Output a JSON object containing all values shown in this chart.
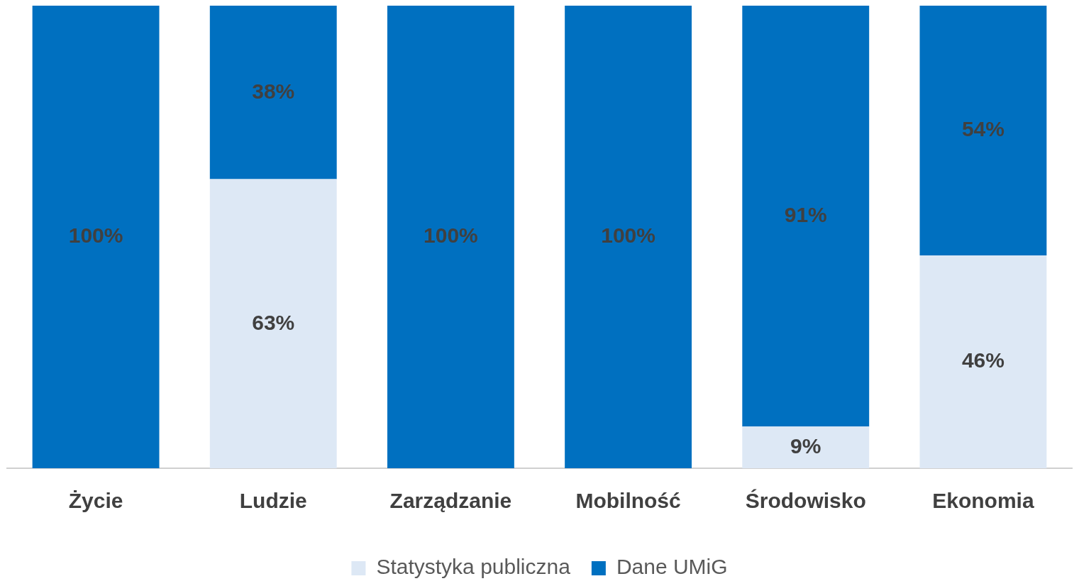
{
  "chart_data": {
    "type": "bar",
    "stacked": true,
    "categories": [
      "Życie",
      "Ludzie",
      "Zarządzanie",
      "Mobilność",
      "Środowisko",
      "Ekonomia"
    ],
    "series": [
      {
        "name": "Statystyka publiczna",
        "color": "#dde8f5",
        "values": [
          0,
          62.5,
          0,
          0,
          9,
          46
        ],
        "value_labels": [
          null,
          "63%",
          null,
          null,
          "9%",
          "46%"
        ]
      },
      {
        "name": "Dane UMiG",
        "color": "#0070c0",
        "values": [
          100,
          37.5,
          100,
          100,
          91,
          54
        ],
        "value_labels": [
          "100%",
          "38%",
          "100%",
          "100%",
          "91%",
          "54%"
        ]
      }
    ],
    "ylim": [
      0,
      100
    ],
    "tick_labels": "x",
    "grid": false,
    "legend": "bottom"
  }
}
